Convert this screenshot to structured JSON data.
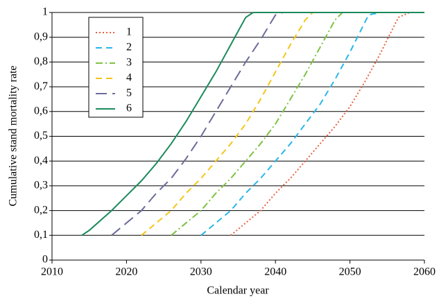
{
  "chart_data": {
    "type": "line",
    "xlabel": "Calendar year",
    "ylabel": "Cumulative stand mortality rate",
    "xlim": [
      2010,
      2060
    ],
    "xticks": [
      2010,
      2020,
      2030,
      2040,
      2050,
      2060
    ],
    "ylim": [
      0,
      1
    ],
    "yticks": [
      0,
      {
        "value": 0.1,
        "label": "0,1"
      },
      {
        "value": 0.2,
        "label": "0,2"
      },
      {
        "value": 0.3,
        "label": "0,3"
      },
      {
        "value": 0.4,
        "label": "0,4"
      },
      {
        "value": 0.5,
        "label": "0,5"
      },
      {
        "value": 0.6,
        "label": "0,6"
      },
      {
        "value": 0.7,
        "label": "0,7"
      },
      {
        "value": 0.8,
        "label": "0,8"
      },
      {
        "value": 0.9,
        "label": "0,9"
      },
      1
    ],
    "grid": true,
    "legend": "upper left",
    "series": [
      {
        "name": "1",
        "color": "#e8603c",
        "style": "dotted",
        "x": [
          2034,
          2036,
          2038,
          2040,
          2042,
          2044,
          2046,
          2048,
          2050,
          2052,
          2054,
          2055.5,
          2056.5,
          2058,
          2060
        ],
        "values": [
          0.1,
          0.15,
          0.2,
          0.27,
          0.33,
          0.4,
          0.47,
          0.54,
          0.62,
          0.72,
          0.83,
          0.92,
          0.98,
          1,
          1
        ]
      },
      {
        "name": "2",
        "color": "#29b6e8",
        "style": "dashed",
        "x": [
          2030,
          2032,
          2034,
          2036,
          2038,
          2040,
          2042,
          2044,
          2046,
          2048,
          2050,
          2051.5,
          2052.5,
          2054,
          2060
        ],
        "values": [
          0.1,
          0.15,
          0.2,
          0.27,
          0.33,
          0.4,
          0.47,
          0.55,
          0.63,
          0.73,
          0.84,
          0.93,
          0.99,
          1,
          1
        ]
      },
      {
        "name": "3",
        "color": "#7dc242",
        "style": "dashdot",
        "x": [
          2026,
          2028,
          2030,
          2032,
          2034,
          2036,
          2038,
          2040,
          2042,
          2044,
          2046,
          2048,
          2049,
          2060
        ],
        "values": [
          0.1,
          0.15,
          0.2,
          0.27,
          0.33,
          0.4,
          0.47,
          0.55,
          0.65,
          0.75,
          0.86,
          0.97,
          1,
          1
        ]
      },
      {
        "name": "4",
        "color": "#f5c518",
        "style": "dashed",
        "x": [
          2022,
          2024,
          2026,
          2028,
          2030,
          2032,
          2034,
          2036,
          2038,
          2040,
          2042,
          2044,
          2045,
          2060
        ],
        "values": [
          0.1,
          0.15,
          0.2,
          0.27,
          0.33,
          0.4,
          0.47,
          0.55,
          0.65,
          0.76,
          0.87,
          0.97,
          1,
          1
        ]
      },
      {
        "name": "5",
        "color": "#6b6b9b",
        "style": "longdash",
        "x": [
          2018,
          2020,
          2022,
          2024,
          2026,
          2028,
          2030,
          2032,
          2034,
          2036,
          2038,
          2040,
          2041,
          2060
        ],
        "values": [
          0.1,
          0.15,
          0.2,
          0.27,
          0.33,
          0.41,
          0.5,
          0.6,
          0.7,
          0.8,
          0.89,
          0.99,
          1,
          1
        ]
      },
      {
        "name": "6",
        "color": "#1a8a5a",
        "style": "solid",
        "x": [
          2014,
          2015,
          2018,
          2020,
          2022,
          2024,
          2026,
          2028,
          2030,
          2032,
          2034,
          2036,
          2037,
          2060
        ],
        "values": [
          0.1,
          0.12,
          0.2,
          0.26,
          0.32,
          0.39,
          0.47,
          0.56,
          0.66,
          0.76,
          0.87,
          0.98,
          1,
          1
        ]
      }
    ]
  }
}
